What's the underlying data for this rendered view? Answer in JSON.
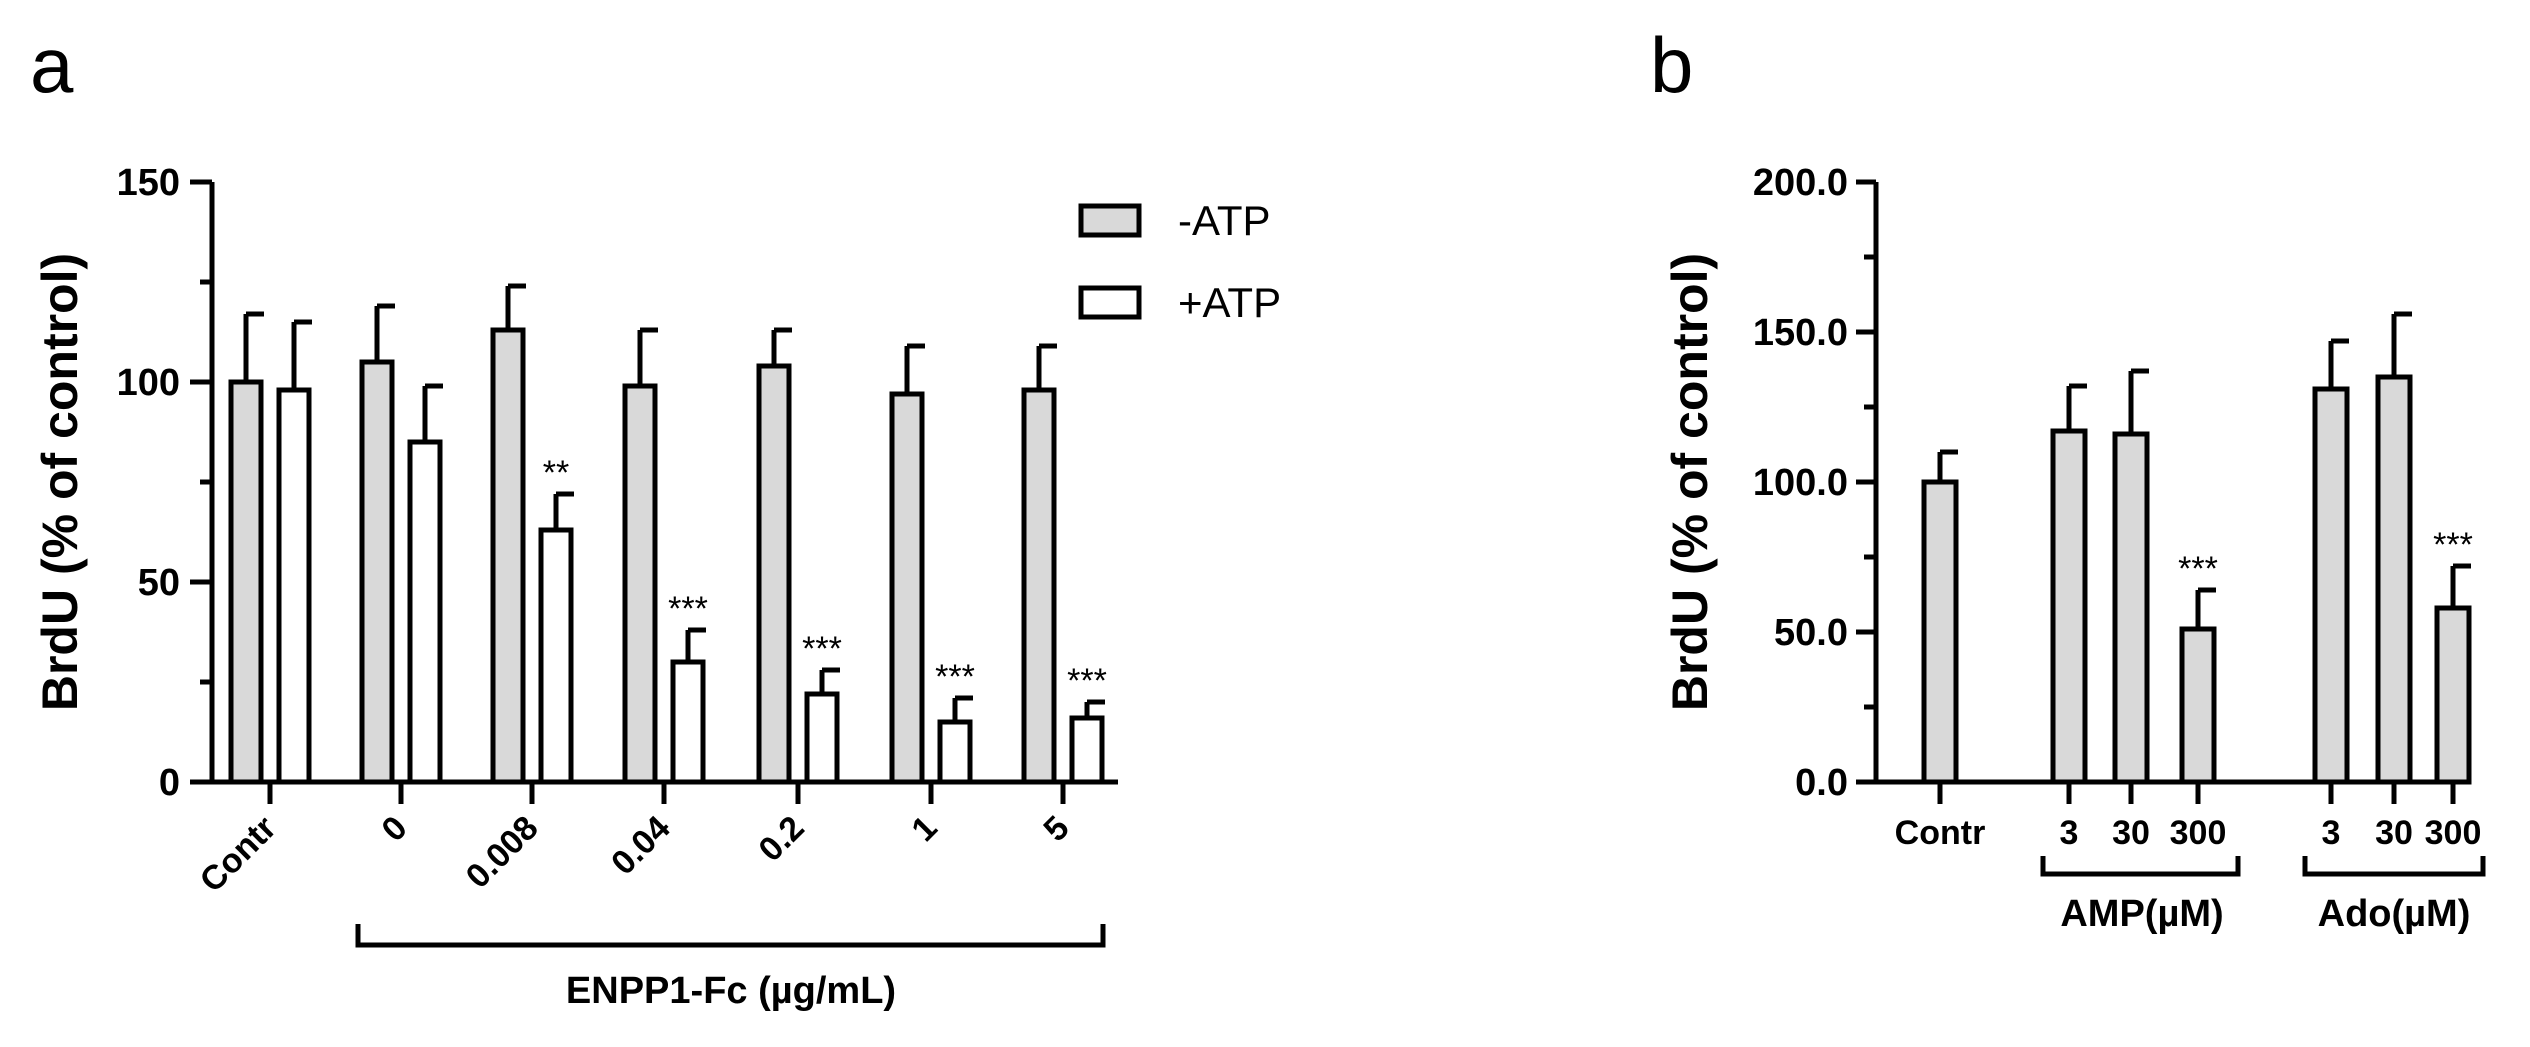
{
  "chart_data": [
    {
      "type": "bar",
      "panel": "a",
      "ylabel": "BrdU (% of control)",
      "ylim": [
        0,
        150
      ],
      "yticks": [
        "0",
        "50",
        "100",
        "150"
      ],
      "categories": [
        "Contr",
        "0",
        "0.008",
        "0.04",
        "0.2",
        "1",
        "5"
      ],
      "group_label": "ENPP1-Fc (µg/mL)",
      "legend": {
        "placement": "top-right",
        "entries": [
          "-ATP",
          "+ATP"
        ]
      },
      "colors": {
        "-ATP": "#d9d9d9",
        "+ATP": "#ffffff",
        "edge": "#000000"
      },
      "series": [
        {
          "name": "-ATP",
          "values": [
            100,
            105,
            113,
            99,
            104,
            97,
            98
          ],
          "errors": [
            17,
            14,
            11,
            14,
            9,
            12,
            11
          ],
          "sig": [
            "",
            "",
            "",
            "",
            "",
            "",
            ""
          ]
        },
        {
          "name": "+ATP",
          "values": [
            98,
            85,
            63,
            30,
            22,
            15,
            16
          ],
          "errors": [
            17,
            14,
            9,
            8,
            6,
            6,
            4
          ],
          "sig": [
            "",
            "",
            "**",
            "***",
            "***",
            "***",
            "***"
          ]
        }
      ]
    },
    {
      "type": "bar",
      "panel": "b",
      "ylabel": "BrdU (% of control)",
      "ylim": [
        0,
        200
      ],
      "yticks": [
        "0.0",
        "50.0",
        "100.0",
        "150.0",
        "200.0"
      ],
      "categories": [
        "Contr",
        "3",
        "30",
        "300",
        "3",
        "30",
        "300"
      ],
      "groups": [
        {
          "label": "AMP(µM)",
          "members": [
            1,
            2,
            3
          ]
        },
        {
          "label": "Ado(µM)",
          "members": [
            4,
            5,
            6
          ]
        }
      ],
      "colors": {
        "bar": "#d9d9d9",
        "edge": "#000000"
      },
      "values": [
        100,
        117,
        116,
        51,
        131,
        135,
        58
      ],
      "errors": [
        10,
        15,
        21,
        13,
        16,
        21,
        14
      ],
      "sig": [
        "",
        "",
        "",
        "***",
        "",
        "",
        "***"
      ]
    }
  ]
}
